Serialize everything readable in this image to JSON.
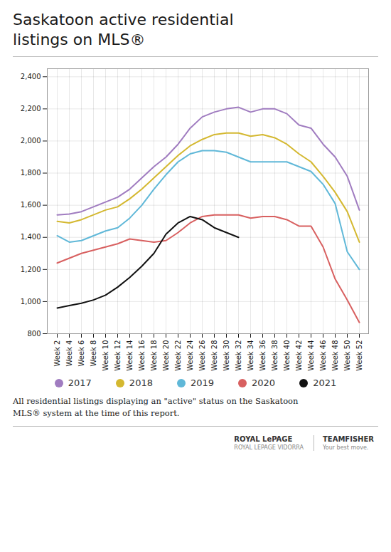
{
  "chart_data": {
    "type": "line",
    "title": "Saskatoon active residential\nlistings on MLS®",
    "categories": [
      "Week 2",
      "Week 4",
      "Week 6",
      "Week 8",
      "Week 10",
      "Week 12",
      "Week 14",
      "Week 16",
      "Week 18",
      "Week 20",
      "Week 22",
      "Week 24",
      "Week 26",
      "Week 28",
      "Week 30",
      "Week 32",
      "Week 34",
      "Week 36",
      "Week 38",
      "Week 40",
      "Week 42",
      "Week 44",
      "Week 46",
      "Week 48",
      "Week 50",
      "Week 52"
    ],
    "series": [
      {
        "name": "2017",
        "color": "#a07cc0",
        "values": [
          1540,
          1545,
          1560,
          1590,
          1620,
          1650,
          1700,
          1770,
          1840,
          1900,
          1980,
          2080,
          2150,
          2180,
          2200,
          2210,
          2180,
          2200,
          2200,
          2170,
          2100,
          2080,
          1980,
          1900,
          1780,
          1570
        ]
      },
      {
        "name": "2018",
        "color": "#d4b830",
        "values": [
          1500,
          1490,
          1510,
          1540,
          1570,
          1590,
          1640,
          1700,
          1770,
          1840,
          1910,
          1970,
          2010,
          2040,
          2050,
          2050,
          2030,
          2040,
          2020,
          1980,
          1920,
          1870,
          1780,
          1680,
          1560,
          1370
        ]
      },
      {
        "name": "2019",
        "color": "#60b8d8",
        "values": [
          1410,
          1370,
          1380,
          1410,
          1440,
          1460,
          1520,
          1600,
          1700,
          1790,
          1870,
          1920,
          1940,
          1940,
          1930,
          1900,
          1870,
          1870,
          1870,
          1870,
          1840,
          1810,
          1730,
          1610,
          1310,
          1200
        ]
      },
      {
        "name": "2020",
        "color": "#d86060",
        "values": [
          1240,
          1270,
          1300,
          1320,
          1340,
          1360,
          1390,
          1380,
          1370,
          1380,
          1430,
          1490,
          1530,
          1540,
          1540,
          1540,
          1520,
          1530,
          1530,
          1510,
          1470,
          1470,
          1340,
          1140,
          1010,
          870
        ]
      },
      {
        "name": "2021",
        "color": "#111111",
        "values": [
          960,
          975,
          990,
          1010,
          1040,
          1090,
          1150,
          1220,
          1300,
          1420,
          1490,
          1530,
          1510,
          1460,
          1430,
          1400,
          null,
          null,
          null,
          null,
          null,
          null,
          null,
          null,
          null,
          null
        ]
      }
    ],
    "ylim": [
      800,
      2450
    ],
    "yticks": [
      800,
      {
        "value": 1000,
        "label": "1,000"
      },
      {
        "value": 1200,
        "label": "1,200"
      },
      {
        "value": 1400,
        "label": "1,400"
      },
      {
        "value": 1600,
        "label": "1,600"
      },
      {
        "value": 1800,
        "label": "1,800"
      },
      {
        "value": 2000,
        "label": "2,000"
      },
      {
        "value": 2200,
        "label": "2,200"
      },
      {
        "value": 2400,
        "label": "2,400"
      }
    ],
    "grid": true,
    "legend": "bottom",
    "caption": [
      "All residential listings displaying an \"active\" status on the Saskatoon",
      "MLS® system at the time of this report."
    ],
    "annotations": [
      [
        "ROYAL LePAGE",
        "ROYAL LEPAGE VIDORRA"
      ],
      [
        "TEAMFISHER",
        "Your best move."
      ]
    ]
  }
}
